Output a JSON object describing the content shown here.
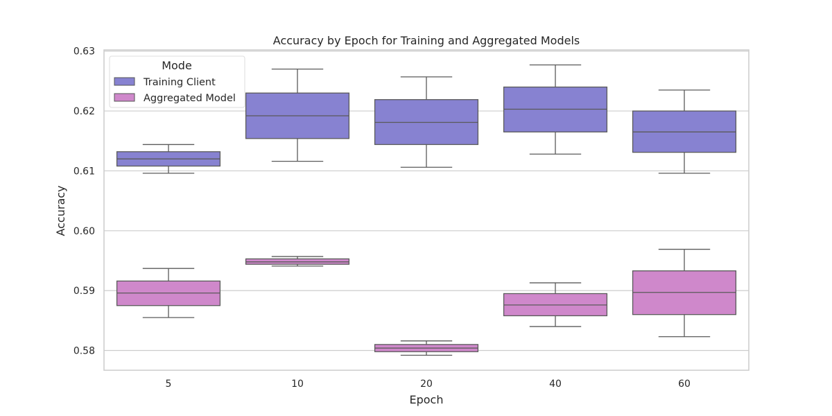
{
  "chart_data": {
    "type": "box",
    "title": "Accuracy by Epoch for Training and Aggregated Models",
    "xlabel": "Epoch",
    "ylabel": "Accuracy",
    "categories": [
      "5",
      "10",
      "20",
      "40",
      "60"
    ],
    "ylim": [
      0.5767,
      0.6302
    ],
    "yticks": [
      0.58,
      0.59,
      0.6,
      0.61,
      0.62,
      0.63
    ],
    "ytick_labels": [
      "0.58",
      "0.59",
      "0.60",
      "0.61",
      "0.62",
      "0.63"
    ],
    "grid": true,
    "legend": {
      "title": "Mode",
      "position": "top-left"
    },
    "series": [
      {
        "name": "Training Client",
        "color": "#8782d1",
        "boxes": [
          {
            "whisker_low": 0.6096,
            "q1": 0.6108,
            "median": 0.612,
            "q3": 0.6132,
            "whisker_high": 0.6144
          },
          {
            "whisker_low": 0.6116,
            "q1": 0.6154,
            "median": 0.6192,
            "q3": 0.623,
            "whisker_high": 0.627
          },
          {
            "whisker_low": 0.6106,
            "q1": 0.6144,
            "median": 0.6181,
            "q3": 0.6219,
            "whisker_high": 0.6257
          },
          {
            "whisker_low": 0.6128,
            "q1": 0.6165,
            "median": 0.6203,
            "q3": 0.624,
            "whisker_high": 0.6277
          },
          {
            "whisker_low": 0.6096,
            "q1": 0.6131,
            "median": 0.6165,
            "q3": 0.62,
            "whisker_high": 0.6235
          }
        ]
      },
      {
        "name": "Aggregated Model",
        "color": "#cf88cb",
        "boxes": [
          {
            "whisker_low": 0.5855,
            "q1": 0.5875,
            "median": 0.5896,
            "q3": 0.5916,
            "whisker_high": 0.5937
          },
          {
            "whisker_low": 0.5941,
            "q1": 0.5944,
            "median": 0.5948,
            "q3": 0.5953,
            "whisker_high": 0.5957
          },
          {
            "whisker_low": 0.5792,
            "q1": 0.5798,
            "median": 0.5804,
            "q3": 0.581,
            "whisker_high": 0.5816
          },
          {
            "whisker_low": 0.584,
            "q1": 0.5858,
            "median": 0.5876,
            "q3": 0.5895,
            "whisker_high": 0.5913
          },
          {
            "whisker_low": 0.5823,
            "q1": 0.586,
            "median": 0.5897,
            "q3": 0.5933,
            "whisker_high": 0.5969
          }
        ]
      }
    ]
  }
}
